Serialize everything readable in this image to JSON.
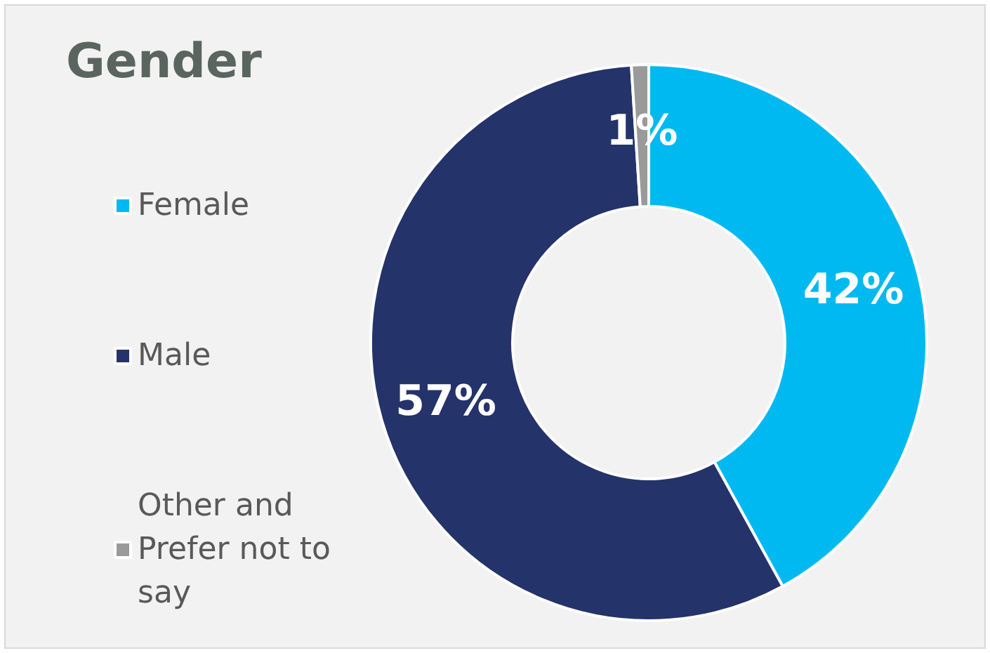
{
  "chart_data": {
    "type": "donut",
    "title": "Gender",
    "categories": [
      "Female",
      "Male",
      "Other and Prefer not to say"
    ],
    "values": [
      42,
      57,
      1
    ],
    "colors": [
      "#00b9f1",
      "#25336b",
      "#9a9a9a"
    ],
    "value_labels": [
      "42%",
      "57%",
      "1%"
    ],
    "legend": "left"
  }
}
